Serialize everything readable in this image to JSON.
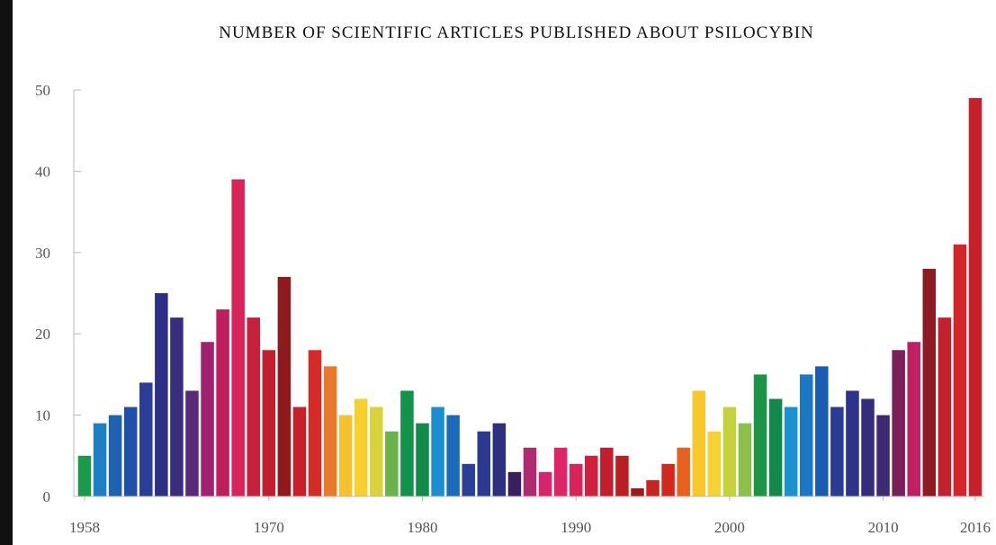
{
  "chart_data": {
    "type": "bar",
    "title": "NUMBER OF SCIENTIFIC ARTICLES PUBLISHED ABOUT PSILOCYBIN",
    "x": [
      1958,
      1959,
      1960,
      1961,
      1962,
      1963,
      1964,
      1965,
      1966,
      1967,
      1968,
      1969,
      1970,
      1971,
      1972,
      1973,
      1974,
      1975,
      1976,
      1977,
      1978,
      1979,
      1980,
      1981,
      1982,
      1983,
      1984,
      1985,
      1986,
      1987,
      1988,
      1989,
      1990,
      1991,
      1992,
      1993,
      1994,
      1995,
      1996,
      1997,
      1998,
      1999,
      2000,
      2001,
      2002,
      2003,
      2004,
      2005,
      2006,
      2007,
      2008,
      2009,
      2010,
      2011,
      2012,
      2013,
      2014,
      2015,
      2016
    ],
    "values": [
      5,
      9,
      10,
      11,
      14,
      25,
      22,
      13,
      19,
      23,
      39,
      22,
      18,
      27,
      11,
      18,
      16,
      10,
      12,
      11,
      8,
      13,
      9,
      11,
      10,
      4,
      8,
      9,
      3,
      6,
      3,
      6,
      4,
      5,
      6,
      5,
      1,
      2,
      4,
      6,
      13,
      8,
      11,
      9,
      15,
      12,
      11,
      15,
      16,
      11,
      13,
      12,
      10,
      18,
      19,
      28,
      22,
      31,
      49
    ],
    "colors": [
      "#1a9a4a",
      "#1e7fc4",
      "#1f62b2",
      "#1e50a8",
      "#283e98",
      "#2b2f86",
      "#3b2d7e",
      "#5a2a78",
      "#a0226e",
      "#c01f5e",
      "#d8245a",
      "#c6203a",
      "#c0202e",
      "#8e1a1e",
      "#c8202a",
      "#d52a28",
      "#e8782a",
      "#f5c22e",
      "#f6d02c",
      "#d6d43a",
      "#6ab34a",
      "#12924a",
      "#128a4a",
      "#1a8ed0",
      "#1a6cba",
      "#2a4098",
      "#2b3a90",
      "#2e2f7e",
      "#3a1f5e",
      "#b02a72",
      "#d8246a",
      "#e02468",
      "#d82458",
      "#d0203e",
      "#c21e2e",
      "#b81e22",
      "#a01a1a",
      "#c82420",
      "#d2281e",
      "#e8601e",
      "#f6c82c",
      "#f3d432",
      "#c6d23c",
      "#8cc04a",
      "#1c9448",
      "#12884a",
      "#1a92d0",
      "#1a78c4",
      "#1a5cb0",
      "#2a3c94",
      "#2c3388",
      "#352c7c",
      "#3e2a74",
      "#7a1f5a",
      "#c02060",
      "#8e1a22",
      "#c4202e",
      "#d4262a",
      "#c8202a"
    ],
    "xticks": [
      1958,
      1970,
      1980,
      1990,
      2000,
      2010,
      2016
    ],
    "ylim": [
      0,
      50
    ],
    "yticks": [
      0,
      10,
      20,
      30,
      40,
      50
    ]
  }
}
